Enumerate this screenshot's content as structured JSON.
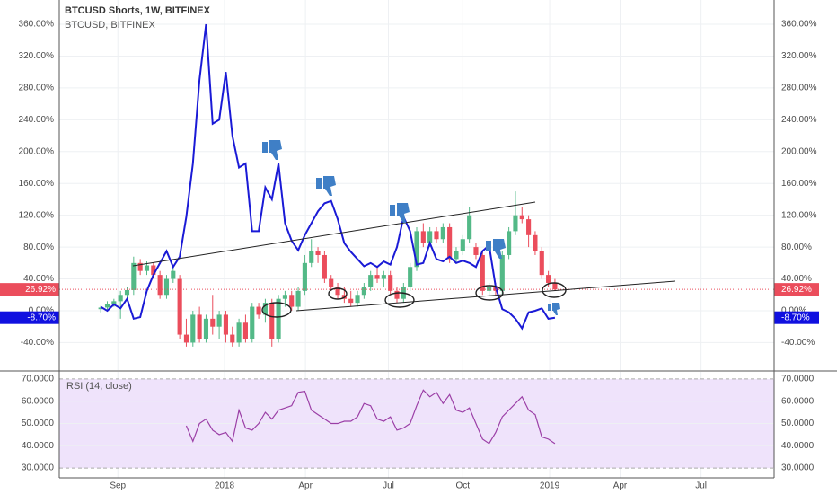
{
  "chart_data": [
    {
      "type": "candlestick",
      "title": "BTCUSD Shorts, 1W, BITFINEX",
      "subtitle": "BTCUSD, BITFINEX",
      "candles": {
        "up_color": "#53b987",
        "down_color": "#eb4d5c",
        "open": [
          2,
          4,
          8,
          12,
          20,
          26,
          60,
          50,
          57,
          45,
          20,
          40,
          40,
          -30,
          -40,
          -5,
          -35,
          -10,
          -20,
          -5,
          -30,
          -40,
          -15,
          -35,
          5,
          -5,
          10,
          -35,
          15,
          20,
          5,
          25,
          60,
          75,
          70,
          40,
          30,
          20,
          15,
          10,
          20,
          30,
          45,
          40,
          45,
          25,
          15,
          30,
          55,
          100,
          85,
          100,
          90,
          105,
          65,
          75,
          90,
          80,
          70,
          25,
          30,
          25,
          70,
          100,
          120,
          115,
          95,
          75,
          45,
          35
        ],
        "high": [
          6,
          12,
          15,
          25,
          30,
          68,
          65,
          62,
          60,
          50,
          45,
          55,
          45,
          -10,
          0,
          5,
          -5,
          20,
          0,
          0,
          -20,
          -10,
          -5,
          10,
          10,
          15,
          15,
          20,
          25,
          25,
          30,
          70,
          90,
          80,
          75,
          45,
          35,
          30,
          25,
          25,
          35,
          50,
          55,
          50,
          50,
          30,
          35,
          60,
          105,
          110,
          105,
          105,
          110,
          110,
          80,
          95,
          130,
          85,
          75,
          35,
          35,
          75,
          105,
          150,
          130,
          120,
          100,
          80,
          50,
          40
        ],
        "low": [
          -2,
          0,
          5,
          -10,
          15,
          20,
          45,
          45,
          40,
          15,
          15,
          35,
          -35,
          -45,
          -45,
          -40,
          -40,
          -30,
          -35,
          -40,
          -45,
          -45,
          -40,
          -40,
          -10,
          -15,
          -45,
          -40,
          5,
          0,
          0,
          20,
          55,
          60,
          35,
          25,
          15,
          10,
          5,
          5,
          15,
          25,
          35,
          30,
          20,
          10,
          10,
          25,
          50,
          80,
          80,
          85,
          85,
          60,
          60,
          70,
          85,
          65,
          20,
          20,
          20,
          20,
          65,
          95,
          110,
          80,
          70,
          40,
          30,
          25
        ],
        "close": [
          4,
          8,
          12,
          20,
          26,
          60,
          50,
          57,
          45,
          20,
          40,
          50,
          -30,
          -40,
          -5,
          -35,
          -10,
          -20,
          -5,
          -30,
          -40,
          -15,
          -35,
          5,
          -5,
          10,
          -35,
          15,
          20,
          5,
          25,
          60,
          75,
          70,
          40,
          30,
          20,
          15,
          10,
          20,
          30,
          45,
          40,
          45,
          25,
          15,
          30,
          55,
          100,
          85,
          100,
          90,
          105,
          65,
          75,
          90,
          120,
          70,
          25,
          30,
          25,
          70,
          100,
          120,
          115,
          95,
          75,
          45,
          35,
          26.92
        ]
      },
      "line": {
        "color": "#1a1ad6",
        "values": [
          5,
          0,
          8,
          3,
          15,
          -10,
          -8,
          25,
          45,
          60,
          75,
          55,
          68,
          118,
          185,
          290,
          360,
          235,
          240,
          300,
          220,
          180,
          185,
          100,
          100,
          155,
          140,
          185,
          110,
          88,
          76,
          95,
          110,
          125,
          135,
          138,
          115,
          85,
          74,
          65,
          56,
          60,
          55,
          62,
          58,
          80,
          118,
          100,
          58,
          60,
          85,
          65,
          62,
          68,
          60,
          63,
          60,
          55,
          75,
          82,
          30,
          2,
          -2,
          -10,
          -22,
          -2,
          0,
          3,
          -10,
          -8.7
        ]
      },
      "ylim": [
        -74.5,
        390.5
      ],
      "yticks": [
        {
          "value": -40,
          "label": "-40.00%"
        },
        {
          "value": 0,
          "label": "0.00%"
        },
        {
          "value": 40,
          "label": "40.00%"
        },
        {
          "value": 80,
          "label": "80.00%"
        },
        {
          "value": 120,
          "label": "120.00%"
        },
        {
          "value": 160,
          "label": "160.00%"
        },
        {
          "value": 200,
          "label": "200.00%"
        },
        {
          "value": 240,
          "label": "240.00%"
        },
        {
          "value": 280,
          "label": "280.00%"
        },
        {
          "value": 320,
          "label": "320.00%"
        },
        {
          "value": 360,
          "label": "360.00%"
        }
      ],
      "xlim": [
        -6.3,
        102.3
      ],
      "xticks": [
        {
          "value": 2.6,
          "label": "Sep"
        },
        {
          "value": 18.8,
          "label": "2018"
        },
        {
          "value": 31.1,
          "label": "Apr"
        },
        {
          "value": 43.7,
          "label": "Jul"
        },
        {
          "value": 55,
          "label": "Oct"
        },
        {
          "value": 68.2,
          "label": "2019"
        },
        {
          "value": 78.9,
          "label": "Apr"
        },
        {
          "value": 91.2,
          "label": "Jul"
        }
      ],
      "price_tags": [
        {
          "value": 26.92,
          "label": "26.92%",
          "color": "#eb4d5c",
          "dotted_line": true
        },
        {
          "value": -8.7,
          "label": "-8.70%",
          "color": "#1010e0",
          "dotted_line": false
        }
      ],
      "grid": true
    },
    {
      "type": "line",
      "title": "RSI (14, close)",
      "color": "#9b3fa6",
      "values": [
        null,
        null,
        null,
        null,
        null,
        null,
        null,
        null,
        null,
        null,
        null,
        null,
        null,
        49,
        42,
        50,
        52,
        47,
        45,
        46,
        42,
        56,
        48,
        47,
        50,
        55,
        52,
        56,
        57,
        58,
        64,
        64.5,
        56,
        54,
        52,
        50,
        50,
        51,
        51,
        53,
        59,
        58,
        52,
        51,
        53,
        47,
        48,
        50,
        58,
        65,
        62,
        64,
        59,
        63,
        56,
        55,
        57,
        50,
        43,
        41,
        46,
        53,
        56,
        59,
        62,
        56,
        54,
        44,
        43,
        41
      ],
      "ylim": [
        25.6,
        73.2
      ],
      "yticks": [
        {
          "value": 30,
          "label": "30.0000"
        },
        {
          "value": 40,
          "label": "40.0000"
        },
        {
          "value": 50,
          "label": "50.0000"
        },
        {
          "value": 60,
          "label": "60.0000"
        },
        {
          "value": 70,
          "label": "70.0000"
        }
      ],
      "band": [
        30,
        70
      ],
      "band_color": "#efe3fb"
    }
  ]
}
